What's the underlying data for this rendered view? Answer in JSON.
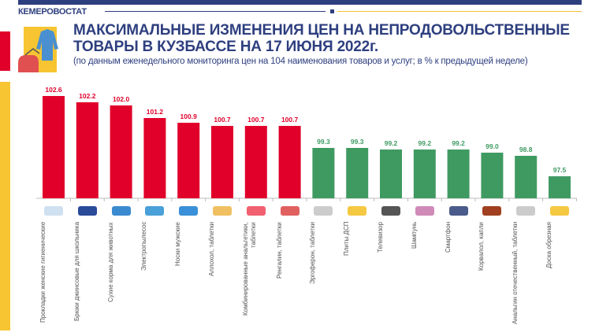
{
  "header": {
    "org": "КЕМЕРОВОСТАТ",
    "title_line1": "МАКСИМАЛЬНЫЕ ИЗМЕНЕНИЯ ЦЕН НА НЕПРОДОВОЛЬСТВЕННЫЕ",
    "title_line2": "ТОВАРЫ В КУЗБАССЕ НА 17 ИЮНЯ 2022г.",
    "subtitle": "(по данным еженедельного мониторинга цен на 104 наименования товаров и услуг; в % к предыдущей неделе)"
  },
  "colors": {
    "navy": "#2e3f7f",
    "increase": "#e0002a",
    "decrease": "#3f9a62",
    "accent_yellow": "#f7c531"
  },
  "chart_data": {
    "type": "bar",
    "title": "МАКСИМАЛЬНЫЕ ИЗМЕНЕНИЯ ЦЕН НА НЕПРОДОВОЛЬСТВЕННЫЕ ТОВАРЫ В КУЗБАССЕ НА 17 ИЮНЯ 2022г.",
    "ylim": [
      96.1,
      103
    ],
    "grid": false,
    "categories": [
      "Прокладки женские гигиенические",
      "Брюки джинсовые для школьника",
      "Сухие корма для животных",
      "Электропылесос",
      "Носки мужские",
      "Аллохол, таблетки",
      "Комбинированные анальгетики, таблетки",
      "Ренгалин, таблетки",
      "Эргоферон, таблетки",
      "Плиты ДСП",
      "Телевизор",
      "Шампунь",
      "Смартфон",
      "Корвалол, капли",
      "Анальгин отечественный, таблетки",
      "Доска обрезная"
    ],
    "values": [
      102.6,
      102.2,
      102.0,
      101.2,
      100.9,
      100.7,
      100.7,
      100.7,
      99.3,
      99.3,
      99.2,
      99.2,
      99.2,
      99.0,
      98.8,
      97.5
    ],
    "value_labels": [
      "102.6",
      "102.2",
      "102.0",
      "101.2",
      "100.9",
      "100.7",
      "100.7",
      "100.7",
      "99.3",
      "99.3",
      "99.2",
      "99.2",
      "99.2",
      "99.0",
      "98.8",
      "97.5"
    ],
    "icons": [
      "pad-icon",
      "jeans-icon",
      "pet-food-bowl-icon",
      "vacuum-cleaner-icon",
      "sock-icon",
      "pill-pack-icon",
      "pills-icon",
      "pill-box-icon",
      "blister-icon",
      "board-icon",
      "tv-icon",
      "shampoo-icon",
      "smartphone-icon",
      "drops-bottle-icon",
      "blister-icon",
      "board-icon"
    ]
  }
}
